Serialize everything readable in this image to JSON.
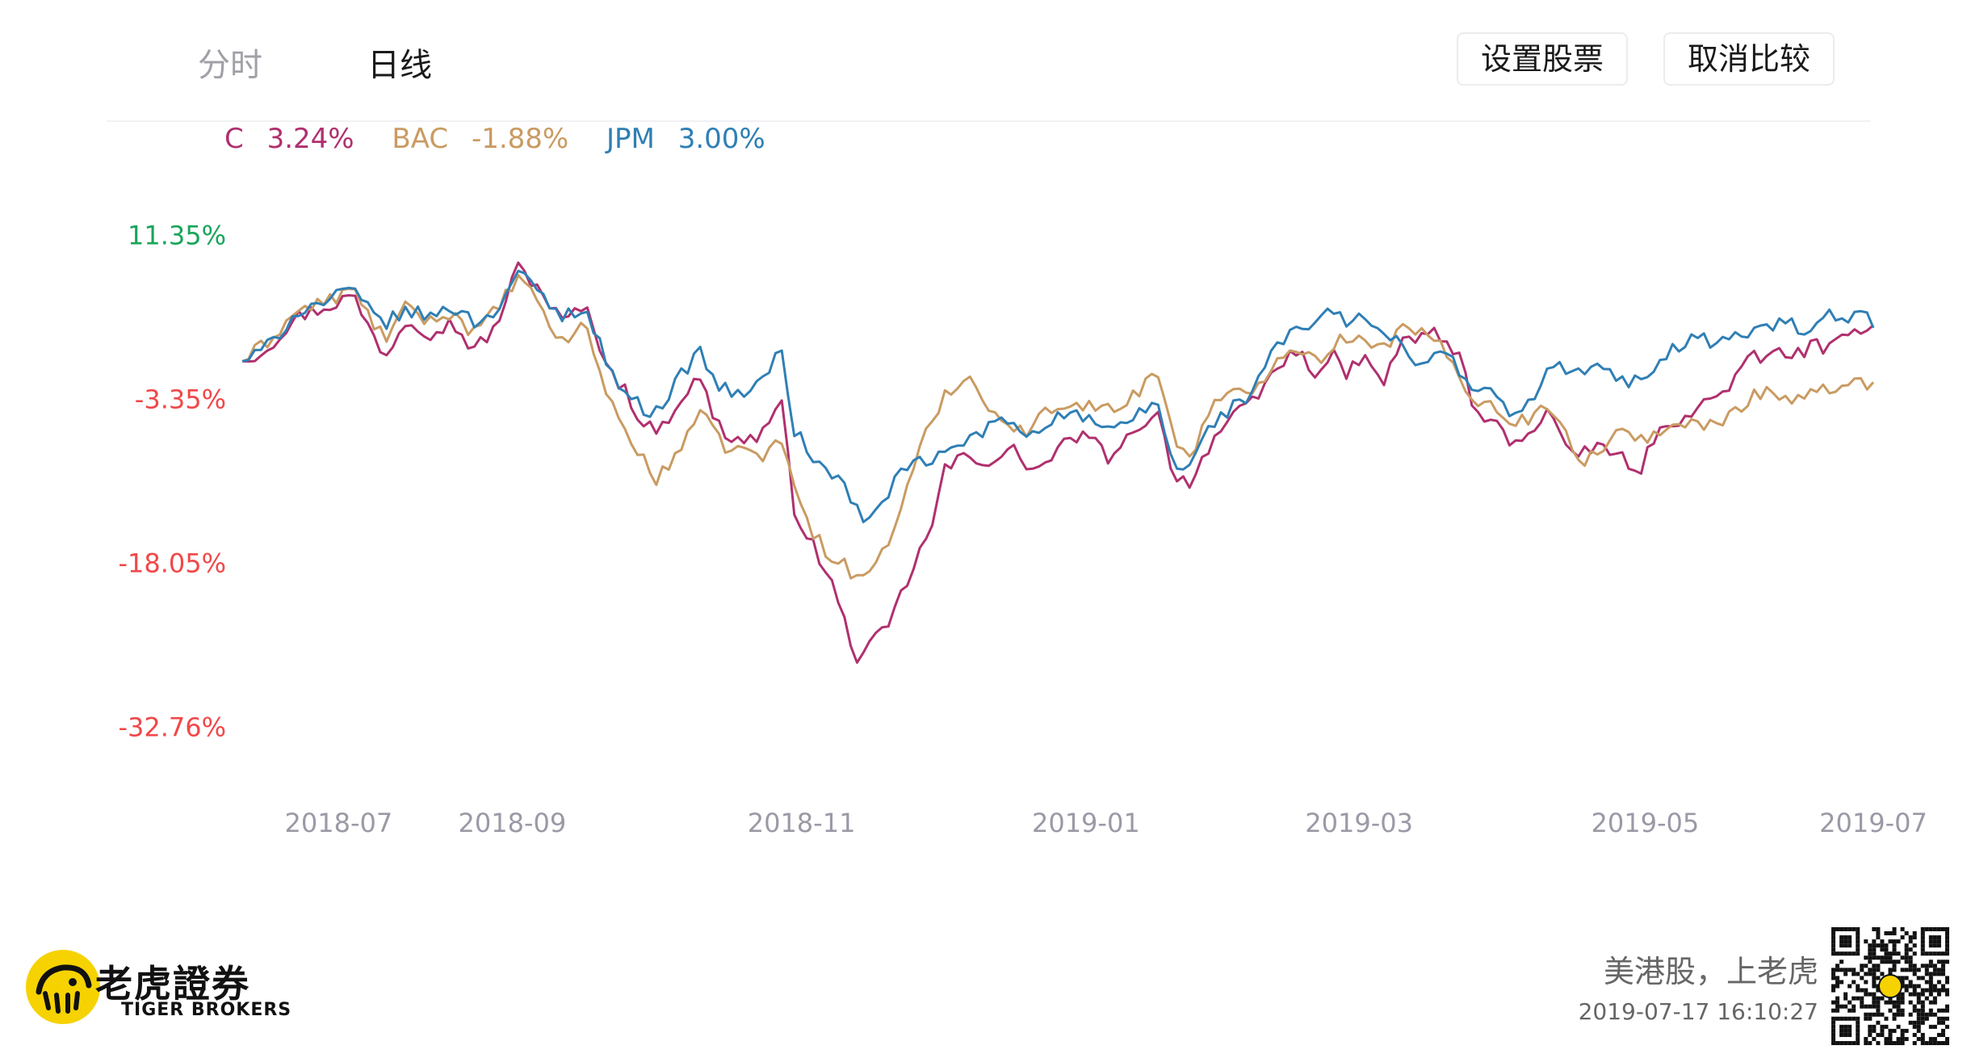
{
  "tabs": [
    {
      "label": "分时",
      "active": false
    },
    {
      "label": "日线",
      "active": true
    }
  ],
  "buttons": {
    "set_stocks": "设置股票",
    "cancel_compare": "取消比较"
  },
  "legend": [
    {
      "symbol": "C",
      "change": "3.24%",
      "color": "#b0306e"
    },
    {
      "symbol": "BAC",
      "change": "-1.88%",
      "color": "#c99b62"
    },
    {
      "symbol": "JPM",
      "change": "3.00%",
      "color": "#2f7fb5"
    }
  ],
  "brand": {
    "name_cn": "老虎證券",
    "name_en": "TIGER BROKERS",
    "slogan": "美港股，上老虎",
    "timestamp": "2019-07-17 16:10:27"
  },
  "colors": {
    "positive": "#19a55a",
    "negative": "#f04848",
    "axis_label": "#9a9aa6",
    "brand_yellow": "#f6d200"
  },
  "chart_data": {
    "type": "line",
    "title": "",
    "x_labels": [
      "2018-07",
      "2018-09",
      "2018-11",
      "2019-01",
      "2019-03",
      "2019-05",
      "2019-07"
    ],
    "x_label_index": [
      0.06,
      0.168,
      0.348,
      0.525,
      0.695,
      0.873,
      1.015
    ],
    "y_ticks": [
      "11.35%",
      "-3.35%",
      "-18.05%",
      "-32.76%"
    ],
    "y_tick_values": [
      11.35,
      -3.35,
      -18.05,
      -32.76
    ],
    "ylim": [
      -35.7,
      14.3
    ],
    "grid": false,
    "series": [
      {
        "name": "C",
        "color": "#b0306e",
        "keypoints": [
          [
            0,
            0
          ],
          [
            0.02,
            1.0
          ],
          [
            0.05,
            4.0
          ],
          [
            0.08,
            5.0
          ],
          [
            0.1,
            6.0
          ],
          [
            0.115,
            3.0
          ],
          [
            0.13,
            0.5
          ],
          [
            0.15,
            4.0
          ],
          [
            0.17,
            2.5
          ],
          [
            0.19,
            3.5
          ],
          [
            0.21,
            1.0
          ],
          [
            0.23,
            3.0
          ],
          [
            0.25,
            8.5
          ],
          [
            0.27,
            6.5
          ],
          [
            0.29,
            3.5
          ],
          [
            0.31,
            5.0
          ],
          [
            0.335,
            -1.0
          ],
          [
            0.35,
            -3.0
          ],
          [
            0.365,
            -6.0
          ],
          [
            0.38,
            -6.0
          ],
          [
            0.4,
            -3.0
          ],
          [
            0.415,
            -1.5
          ],
          [
            0.43,
            -5.5
          ],
          [
            0.445,
            -7.0
          ],
          [
            0.465,
            -7.0
          ],
          [
            0.49,
            -4.0
          ],
          [
            0.5,
            -13.0
          ],
          [
            0.52,
            -17.0
          ],
          [
            0.535,
            -20.0
          ],
          [
            0.55,
            -24.5
          ],
          [
            0.56,
            -27.0
          ],
          [
            0.57,
            -25.5
          ],
          [
            0.585,
            -24.0
          ],
          [
            0.6,
            -20.5
          ],
          [
            0.615,
            -17.0
          ],
          [
            0.625,
            -15.5
          ],
          [
            0.635,
            -10.0
          ],
          [
            0.655,
            -8.5
          ],
          [
            0.68,
            -9.0
          ],
          [
            0.7,
            -8.0
          ],
          [
            0.72,
            -10.0
          ],
          [
            0.74,
            -8.0
          ],
          [
            0.76,
            -6.5
          ],
          [
            0.775,
            -7.5
          ],
          [
            0.79,
            -9.0
          ],
          [
            0.81,
            -6.0
          ],
          [
            0.83,
            -4.5
          ],
          [
            0.845,
            -10.0
          ],
          [
            0.86,
            -11.0
          ],
          [
            0.88,
            -7.0
          ],
          [
            0.9,
            -5.0
          ],
          [
            0.92,
            -3.5
          ],
          [
            0.935,
            -1.0
          ],
          [
            0.955,
            1.0
          ],
          [
            0.975,
            -1.0
          ],
          [
            0.99,
            0.5
          ],
          [
            1.0,
            -1.5
          ],
          [
            1.015,
            0.5
          ],
          [
            1.035,
            -2.0
          ],
          [
            1.05,
            1.5
          ],
          [
            1.065,
            2.0
          ],
          [
            1.08,
            3.0
          ],
          [
            1.095,
            1.0
          ],
          [
            1.105,
            0.5
          ],
          [
            1.12,
            -5.0
          ],
          [
            1.135,
            -5.5
          ],
          [
            1.155,
            -7.5
          ],
          [
            1.17,
            -6.0
          ],
          [
            1.185,
            -4.5
          ],
          [
            1.2,
            -7.0
          ],
          [
            1.21,
            -9.5
          ],
          [
            1.22,
            -8.0
          ],
          [
            1.235,
            -7.5
          ],
          [
            1.25,
            -8.5
          ],
          [
            1.265,
            -10.5
          ],
          [
            1.28,
            -7.0
          ],
          [
            1.295,
            -6.0
          ],
          [
            1.31,
            -4.5
          ],
          [
            1.325,
            -4.0
          ],
          [
            1.34,
            -3.0
          ],
          [
            1.355,
            -1.5
          ],
          [
            1.37,
            0.5
          ],
          [
            1.38,
            0.0
          ],
          [
            1.395,
            1.0
          ],
          [
            1.41,
            0.5
          ],
          [
            1.425,
            1.5
          ],
          [
            1.44,
            1.0
          ],
          [
            1.455,
            2.0
          ],
          [
            1.47,
            3.2
          ],
          [
            1.48,
            3.24
          ]
        ]
      },
      {
        "name": "BAC",
        "color": "#c99b62",
        "keypoints": [
          [
            0,
            0
          ],
          [
            0.02,
            1.5
          ],
          [
            0.05,
            4.5
          ],
          [
            0.08,
            5.5
          ],
          [
            0.1,
            6.5
          ],
          [
            0.115,
            4.0
          ],
          [
            0.13,
            2.0
          ],
          [
            0.15,
            5.0
          ],
          [
            0.17,
            3.5
          ],
          [
            0.19,
            4.5
          ],
          [
            0.21,
            2.5
          ],
          [
            0.23,
            4.5
          ],
          [
            0.25,
            7.5
          ],
          [
            0.27,
            5.0
          ],
          [
            0.29,
            1.5
          ],
          [
            0.31,
            3.5
          ],
          [
            0.33,
            -2.5
          ],
          [
            0.345,
            -6.0
          ],
          [
            0.36,
            -8.0
          ],
          [
            0.375,
            -11.0
          ],
          [
            0.395,
            -8.0
          ],
          [
            0.415,
            -4.5
          ],
          [
            0.435,
            -7.5
          ],
          [
            0.455,
            -8.0
          ],
          [
            0.475,
            -8.5
          ],
          [
            0.49,
            -7.0
          ],
          [
            0.5,
            -11.0
          ],
          [
            0.515,
            -15.0
          ],
          [
            0.53,
            -17.0
          ],
          [
            0.545,
            -18.0
          ],
          [
            0.56,
            -20.0
          ],
          [
            0.57,
            -18.5
          ],
          [
            0.585,
            -16.5
          ],
          [
            0.6,
            -12.5
          ],
          [
            0.615,
            -8.0
          ],
          [
            0.625,
            -5.5
          ],
          [
            0.64,
            -2.5
          ],
          [
            0.66,
            -1.5
          ],
          [
            0.675,
            -3.5
          ],
          [
            0.69,
            -5.5
          ],
          [
            0.71,
            -6.5
          ],
          [
            0.73,
            -4.5
          ],
          [
            0.75,
            -3.5
          ],
          [
            0.77,
            -4.0
          ],
          [
            0.79,
            -4.5
          ],
          [
            0.81,
            -3.0
          ],
          [
            0.83,
            -0.5
          ],
          [
            0.845,
            -7.0
          ],
          [
            0.86,
            -8.5
          ],
          [
            0.88,
            -4.0
          ],
          [
            0.9,
            -3.0
          ],
          [
            0.92,
            -2.5
          ],
          [
            0.935,
            0.0
          ],
          [
            0.955,
            1.5
          ],
          [
            0.975,
            0.0
          ],
          [
            0.99,
            1.5
          ],
          [
            1.0,
            2.0
          ],
          [
            1.015,
            2.5
          ],
          [
            1.035,
            1.0
          ],
          [
            1.05,
            3.0
          ],
          [
            1.065,
            2.5
          ],
          [
            1.08,
            2.0
          ],
          [
            1.095,
            0.5
          ],
          [
            1.105,
            -1.5
          ],
          [
            1.12,
            -3.5
          ],
          [
            1.135,
            -4.0
          ],
          [
            1.155,
            -5.5
          ],
          [
            1.17,
            -5.0
          ],
          [
            1.185,
            -4.0
          ],
          [
            1.2,
            -5.5
          ],
          [
            1.21,
            -8.5
          ],
          [
            1.22,
            -9.0
          ],
          [
            1.235,
            -7.5
          ],
          [
            1.25,
            -6.5
          ],
          [
            1.265,
            -7.0
          ],
          [
            1.28,
            -6.5
          ],
          [
            1.295,
            -6.0
          ],
          [
            1.31,
            -5.5
          ],
          [
            1.325,
            -6.0
          ],
          [
            1.34,
            -5.5
          ],
          [
            1.355,
            -4.5
          ],
          [
            1.37,
            -3.0
          ],
          [
            1.385,
            -2.5
          ],
          [
            1.4,
            -3.5
          ],
          [
            1.415,
            -3.0
          ],
          [
            1.43,
            -2.5
          ],
          [
            1.445,
            -3.0
          ],
          [
            1.46,
            -2.0
          ],
          [
            1.475,
            -1.9
          ],
          [
            1.48,
            -1.88
          ]
        ]
      },
      {
        "name": "JPM",
        "color": "#2f7fb5",
        "keypoints": [
          [
            0,
            0
          ],
          [
            0.02,
            1.0
          ],
          [
            0.05,
            4.5
          ],
          [
            0.08,
            5.5
          ],
          [
            0.1,
            6.5
          ],
          [
            0.115,
            4.5
          ],
          [
            0.13,
            3.5
          ],
          [
            0.15,
            4.5
          ],
          [
            0.17,
            4.0
          ],
          [
            0.19,
            5.0
          ],
          [
            0.21,
            3.5
          ],
          [
            0.23,
            4.5
          ],
          [
            0.25,
            8.0
          ],
          [
            0.27,
            6.0
          ],
          [
            0.29,
            4.0
          ],
          [
            0.31,
            5.0
          ],
          [
            0.335,
            -1.0
          ],
          [
            0.35,
            -3.0
          ],
          [
            0.365,
            -4.5
          ],
          [
            0.38,
            -4.0
          ],
          [
            0.4,
            -1.0
          ],
          [
            0.415,
            1.0
          ],
          [
            0.43,
            -2.0
          ],
          [
            0.445,
            -3.0
          ],
          [
            0.465,
            -2.5
          ],
          [
            0.49,
            1.0
          ],
          [
            0.5,
            -6.0
          ],
          [
            0.52,
            -9.0
          ],
          [
            0.54,
            -10.5
          ],
          [
            0.555,
            -12.5
          ],
          [
            0.565,
            -15.0
          ],
          [
            0.575,
            -13.5
          ],
          [
            0.59,
            -11.0
          ],
          [
            0.605,
            -9.5
          ],
          [
            0.62,
            -9.0
          ],
          [
            0.635,
            -8.5
          ],
          [
            0.65,
            -7.5
          ],
          [
            0.67,
            -6.5
          ],
          [
            0.69,
            -5.0
          ],
          [
            0.71,
            -6.5
          ],
          [
            0.73,
            -5.5
          ],
          [
            0.75,
            -4.5
          ],
          [
            0.77,
            -5.5
          ],
          [
            0.79,
            -6.5
          ],
          [
            0.81,
            -5.0
          ],
          [
            0.83,
            -3.5
          ],
          [
            0.845,
            -9.5
          ],
          [
            0.86,
            -9.5
          ],
          [
            0.88,
            -5.5
          ],
          [
            0.9,
            -4.0
          ],
          [
            0.92,
            -2.5
          ],
          [
            0.935,
            1.5
          ],
          [
            0.955,
            2.5
          ],
          [
            0.975,
            3.5
          ],
          [
            0.99,
            4.5
          ],
          [
            1.0,
            3.5
          ],
          [
            1.015,
            4.0
          ],
          [
            1.035,
            2.5
          ],
          [
            1.05,
            1.5
          ],
          [
            1.065,
            -0.5
          ],
          [
            1.08,
            1.0
          ],
          [
            1.095,
            0.5
          ],
          [
            1.105,
            -1.0
          ],
          [
            1.12,
            -2.5
          ],
          [
            1.135,
            -3.0
          ],
          [
            1.155,
            -5.0
          ],
          [
            1.17,
            -3.5
          ],
          [
            1.185,
            -1.0
          ],
          [
            1.2,
            -0.5
          ],
          [
            1.215,
            -1.0
          ],
          [
            1.23,
            -0.5
          ],
          [
            1.245,
            -1.5
          ],
          [
            1.26,
            -2.0
          ],
          [
            1.275,
            -1.0
          ],
          [
            1.29,
            0.5
          ],
          [
            1.305,
            1.5
          ],
          [
            1.32,
            2.5
          ],
          [
            1.335,
            1.5
          ],
          [
            1.35,
            2.0
          ],
          [
            1.365,
            2.5
          ],
          [
            1.38,
            3.0
          ],
          [
            1.4,
            3.5
          ],
          [
            1.42,
            2.5
          ],
          [
            1.44,
            4.0
          ],
          [
            1.46,
            3.5
          ],
          [
            1.47,
            4.5
          ],
          [
            1.48,
            3.0
          ]
        ]
      }
    ]
  }
}
